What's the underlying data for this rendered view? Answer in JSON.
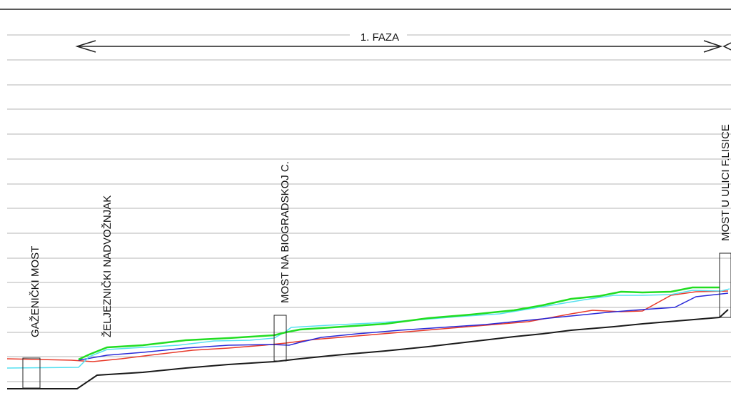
{
  "phase": {
    "label": "1. FAZA"
  },
  "structures": [
    {
      "id": "gazenicki",
      "label": "GAŽENIČKI MOST"
    },
    {
      "id": "zeljeznicki",
      "label": "ŽELJEZNIČKI NADVOŽNJAK"
    },
    {
      "id": "biogradska",
      "label": "MOST NA BIOGRADSKOJ C."
    },
    {
      "id": "lisice",
      "label": "MOST U ULICI F.LISICE"
    }
  ],
  "colors": {
    "grid": "#b5b5b5",
    "border": "#222222",
    "terrain": "#1a1a1a",
    "profile_green": "#22dd22",
    "profile_cyan": "#55e0f0",
    "profile_red": "#e83a2a",
    "profile_blue": "#2a2ad8",
    "bridge": "#222222"
  }
}
